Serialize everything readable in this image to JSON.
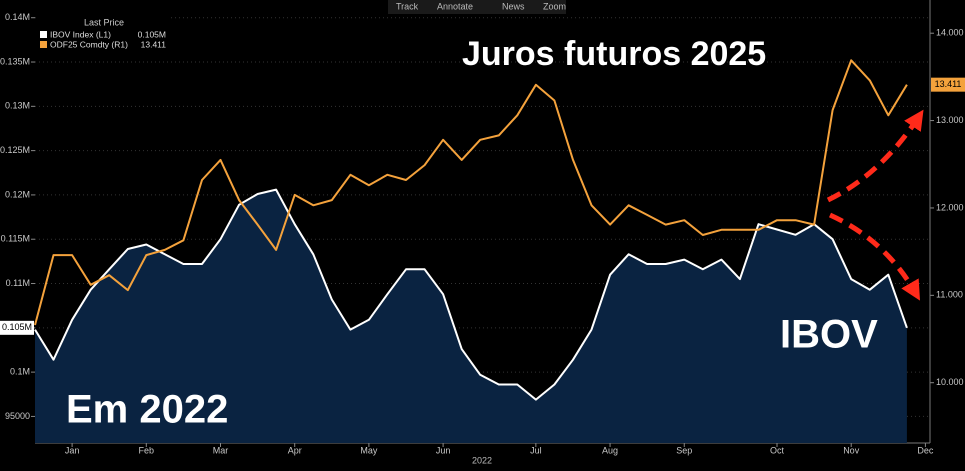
{
  "toolbar": [
    "Track",
    "Annotate",
    "News",
    "Zoom"
  ],
  "chart_data": {
    "type": "line",
    "legend_title": "Last Price",
    "annotations": [
      "Juros futuros 2025",
      "IBOV",
      "Em 2022"
    ],
    "x_label": "2022",
    "categories": [
      null,
      null,
      "Jan",
      null,
      null,
      null,
      "Feb",
      null,
      null,
      null,
      "Mar",
      null,
      null,
      null,
      "Apr",
      null,
      null,
      null,
      "May",
      null,
      null,
      null,
      "Jun",
      null,
      null,
      null,
      null,
      "Jul",
      null,
      null,
      null,
      "Aug",
      null,
      null,
      null,
      "Sep",
      null,
      null,
      null,
      null,
      "Oct",
      null,
      null,
      null,
      "Nov",
      null,
      null,
      null,
      "Dec"
    ],
    "series": [
      {
        "name": "IBOV Index  (L1)",
        "color": "#ffffff",
        "area_color": "#0a2341",
        "last_price": "0.105M",
        "axis": "y",
        "values": [
          104800,
          101400,
          105900,
          109300,
          111600,
          113900,
          114400,
          113300,
          112200,
          112200,
          115000,
          118900,
          120100,
          120600,
          116700,
          113300,
          108200,
          104800,
          105900,
          108800,
          111600,
          111600,
          108800,
          102600,
          99700,
          98600,
          98600,
          96900,
          98600,
          101400,
          104800,
          111000,
          113300,
          112200,
          112200,
          112700,
          111600,
          112700,
          110500,
          116700,
          116100,
          115500,
          116700,
          115000,
          110500,
          109300,
          111000,
          105000,
          null
        ]
      },
      {
        "name": "ODF25 Comdty  (R1)",
        "color": "#f4a23c",
        "last_price": "13.411",
        "axis": "y2",
        "values": [
          10.66,
          11.46,
          11.46,
          11.12,
          11.23,
          11.06,
          11.46,
          11.52,
          11.63,
          12.32,
          12.55,
          12.09,
          11.81,
          11.52,
          12.15,
          12.03,
          12.09,
          12.38,
          12.26,
          12.38,
          12.32,
          12.49,
          12.78,
          12.55,
          12.78,
          12.83,
          13.06,
          13.41,
          13.23,
          12.55,
          12.03,
          11.81,
          12.03,
          11.92,
          11.81,
          11.86,
          11.69,
          11.75,
          11.75,
          11.75,
          11.86,
          11.86,
          11.81,
          13.12,
          13.69,
          13.46,
          13.06,
          13.411,
          null
        ]
      }
    ],
    "ylim": [
      92000,
      142000
    ],
    "yticks": [
      95000,
      {
        "value": 100000,
        "label": "0.1M"
      },
      {
        "value": 105000,
        "label": "0.105M"
      },
      {
        "value": 110000,
        "label": "0.11M"
      },
      {
        "value": 115000,
        "label": "0.115M"
      },
      {
        "value": 120000,
        "label": "0.12M"
      },
      {
        "value": 125000,
        "label": "0.125M"
      },
      {
        "value": 130000,
        "label": "0.13M"
      },
      {
        "value": 135000,
        "label": "0.135M"
      },
      {
        "value": 140000,
        "label": "0.14M"
      }
    ],
    "y2lim": [
      9.31,
      14.38
    ],
    "y2ticks": [
      {
        "value": 10,
        "label": "10.000"
      },
      {
        "value": 11,
        "label": "11.000"
      },
      {
        "value": 12,
        "label": "12.000"
      },
      {
        "value": 13,
        "label": "13.000"
      },
      {
        "value": 14,
        "label": "14.000"
      }
    ],
    "grid": true
  }
}
